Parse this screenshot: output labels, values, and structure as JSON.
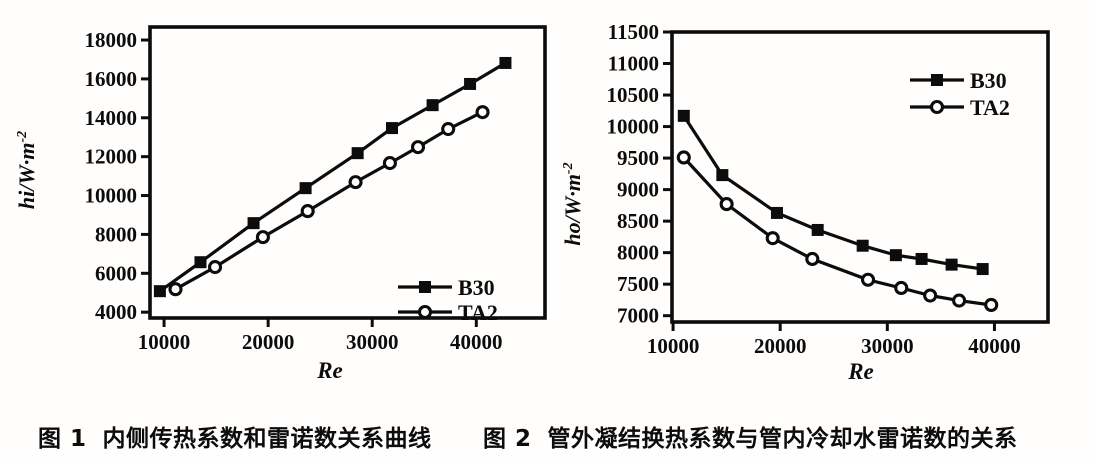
{
  "figure": {
    "captions": [
      {
        "label": "图 1",
        "text": "内侧传热系数和雷诺数关系曲线"
      },
      {
        "label": "图 2",
        "text": "管外凝结换热系数与管内冷却水雷诺数的关系"
      }
    ],
    "ink_color": "#0c0c0c",
    "background_color": "#fffefd"
  },
  "chart_data": [
    {
      "type": "line",
      "title": "",
      "xlabel": "Re",
      "ylabel": "hi/W·m⁻²",
      "xlim": [
        8650,
        46600
      ],
      "ylim": [
        3700,
        18670
      ],
      "xticks": [
        10000,
        20000,
        30000,
        40000
      ],
      "yticks": [
        4000,
        6000,
        8000,
        10000,
        12000,
        14000,
        16000,
        18000
      ],
      "grid": false,
      "legend_position": "bottom-right",
      "series": [
        {
          "name": "B30",
          "marker": "filled-square",
          "x": [
            9600,
            13500,
            18600,
            23600,
            28600,
            31900,
            35800,
            39400,
            42800
          ],
          "y": [
            5080,
            6570,
            8580,
            10380,
            12180,
            13470,
            14650,
            15740,
            16820
          ]
        },
        {
          "name": "TA2",
          "marker": "open-circle",
          "x": [
            11100,
            14900,
            19500,
            23800,
            28400,
            31700,
            34400,
            37300,
            40600
          ],
          "y": [
            5180,
            6320,
            7860,
            9200,
            10690,
            11670,
            12490,
            13420,
            14290
          ]
        }
      ]
    },
    {
      "type": "line",
      "title": "",
      "xlabel": "Re",
      "ylabel": "ho/W·m⁻²",
      "xlim": [
        9900,
        45000
      ],
      "ylim": [
        6900,
        11500
      ],
      "xticks": [
        10000,
        20000,
        30000,
        40000
      ],
      "yticks": [
        7000,
        7500,
        8000,
        8500,
        9000,
        9500,
        10000,
        10500,
        11000,
        11500
      ],
      "grid": false,
      "legend_position": "top-right",
      "series": [
        {
          "name": "B30",
          "marker": "filled-square",
          "x": [
            11000,
            14600,
            19700,
            23500,
            27700,
            30800,
            33200,
            36000,
            38900
          ],
          "y": [
            10170,
            9230,
            8630,
            8360,
            8110,
            7960,
            7900,
            7810,
            7740
          ]
        },
        {
          "name": "TA2",
          "marker": "open-circle",
          "x": [
            11000,
            15000,
            19300,
            23000,
            28200,
            31300,
            34000,
            36700,
            39700
          ],
          "y": [
            9510,
            8770,
            8230,
            7900,
            7570,
            7440,
            7320,
            7240,
            7170
          ]
        }
      ]
    }
  ]
}
